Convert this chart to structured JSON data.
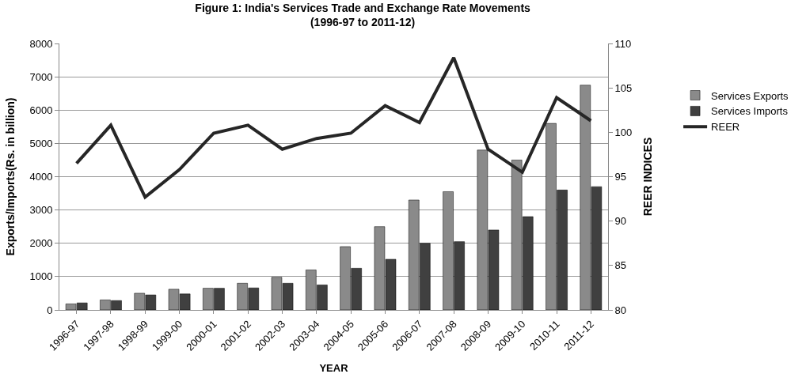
{
  "chart_data": {
    "type": "bar",
    "title": "Figure 1: India's Services Trade and Exchange Rate Movements\n(1996-97 to 2011-12)",
    "xlabel": "YEAR",
    "ylabel": "Exports/Imports(Rs. in billion)",
    "y2label": "REER INDICES",
    "categories": [
      "1996-97",
      "1997-98",
      "1998-99",
      "1999-00",
      "2000-01",
      "2001-02",
      "2002-03",
      "2003-04",
      "2004-05",
      "2005-06",
      "2006-07",
      "2007-08",
      "2008-09",
      "2009-10",
      "2010-11",
      "2011-12"
    ],
    "series": [
      {
        "name": "Services Exports",
        "color": "#8a8a8a",
        "values": [
          180,
          300,
          500,
          620,
          650,
          800,
          980,
          1200,
          1900,
          2500,
          3300,
          3550,
          4800,
          4500,
          5600,
          6750
        ]
      },
      {
        "name": "Services Imports",
        "color": "#404040",
        "values": [
          210,
          280,
          450,
          480,
          650,
          660,
          800,
          750,
          1250,
          1520,
          2000,
          2050,
          2400,
          2800,
          3600,
          3700
        ]
      },
      {
        "name": "REER",
        "type": "line",
        "axis": "y2",
        "color": "#262626",
        "values": [
          96.5,
          100.8,
          92.7,
          95.8,
          99.9,
          100.8,
          98.1,
          99.3,
          99.9,
          103.0,
          101.1,
          108.4,
          98.1,
          95.5,
          103.9,
          101.3
        ]
      }
    ],
    "ylim": [
      0,
      8000
    ],
    "yticks": [
      0,
      1000,
      2000,
      3000,
      4000,
      5000,
      6000,
      7000,
      8000
    ],
    "y2lim": [
      80,
      110
    ],
    "y2ticks": [
      80,
      85,
      90,
      95,
      100,
      105,
      110
    ],
    "grid": "y",
    "legend": "right"
  }
}
